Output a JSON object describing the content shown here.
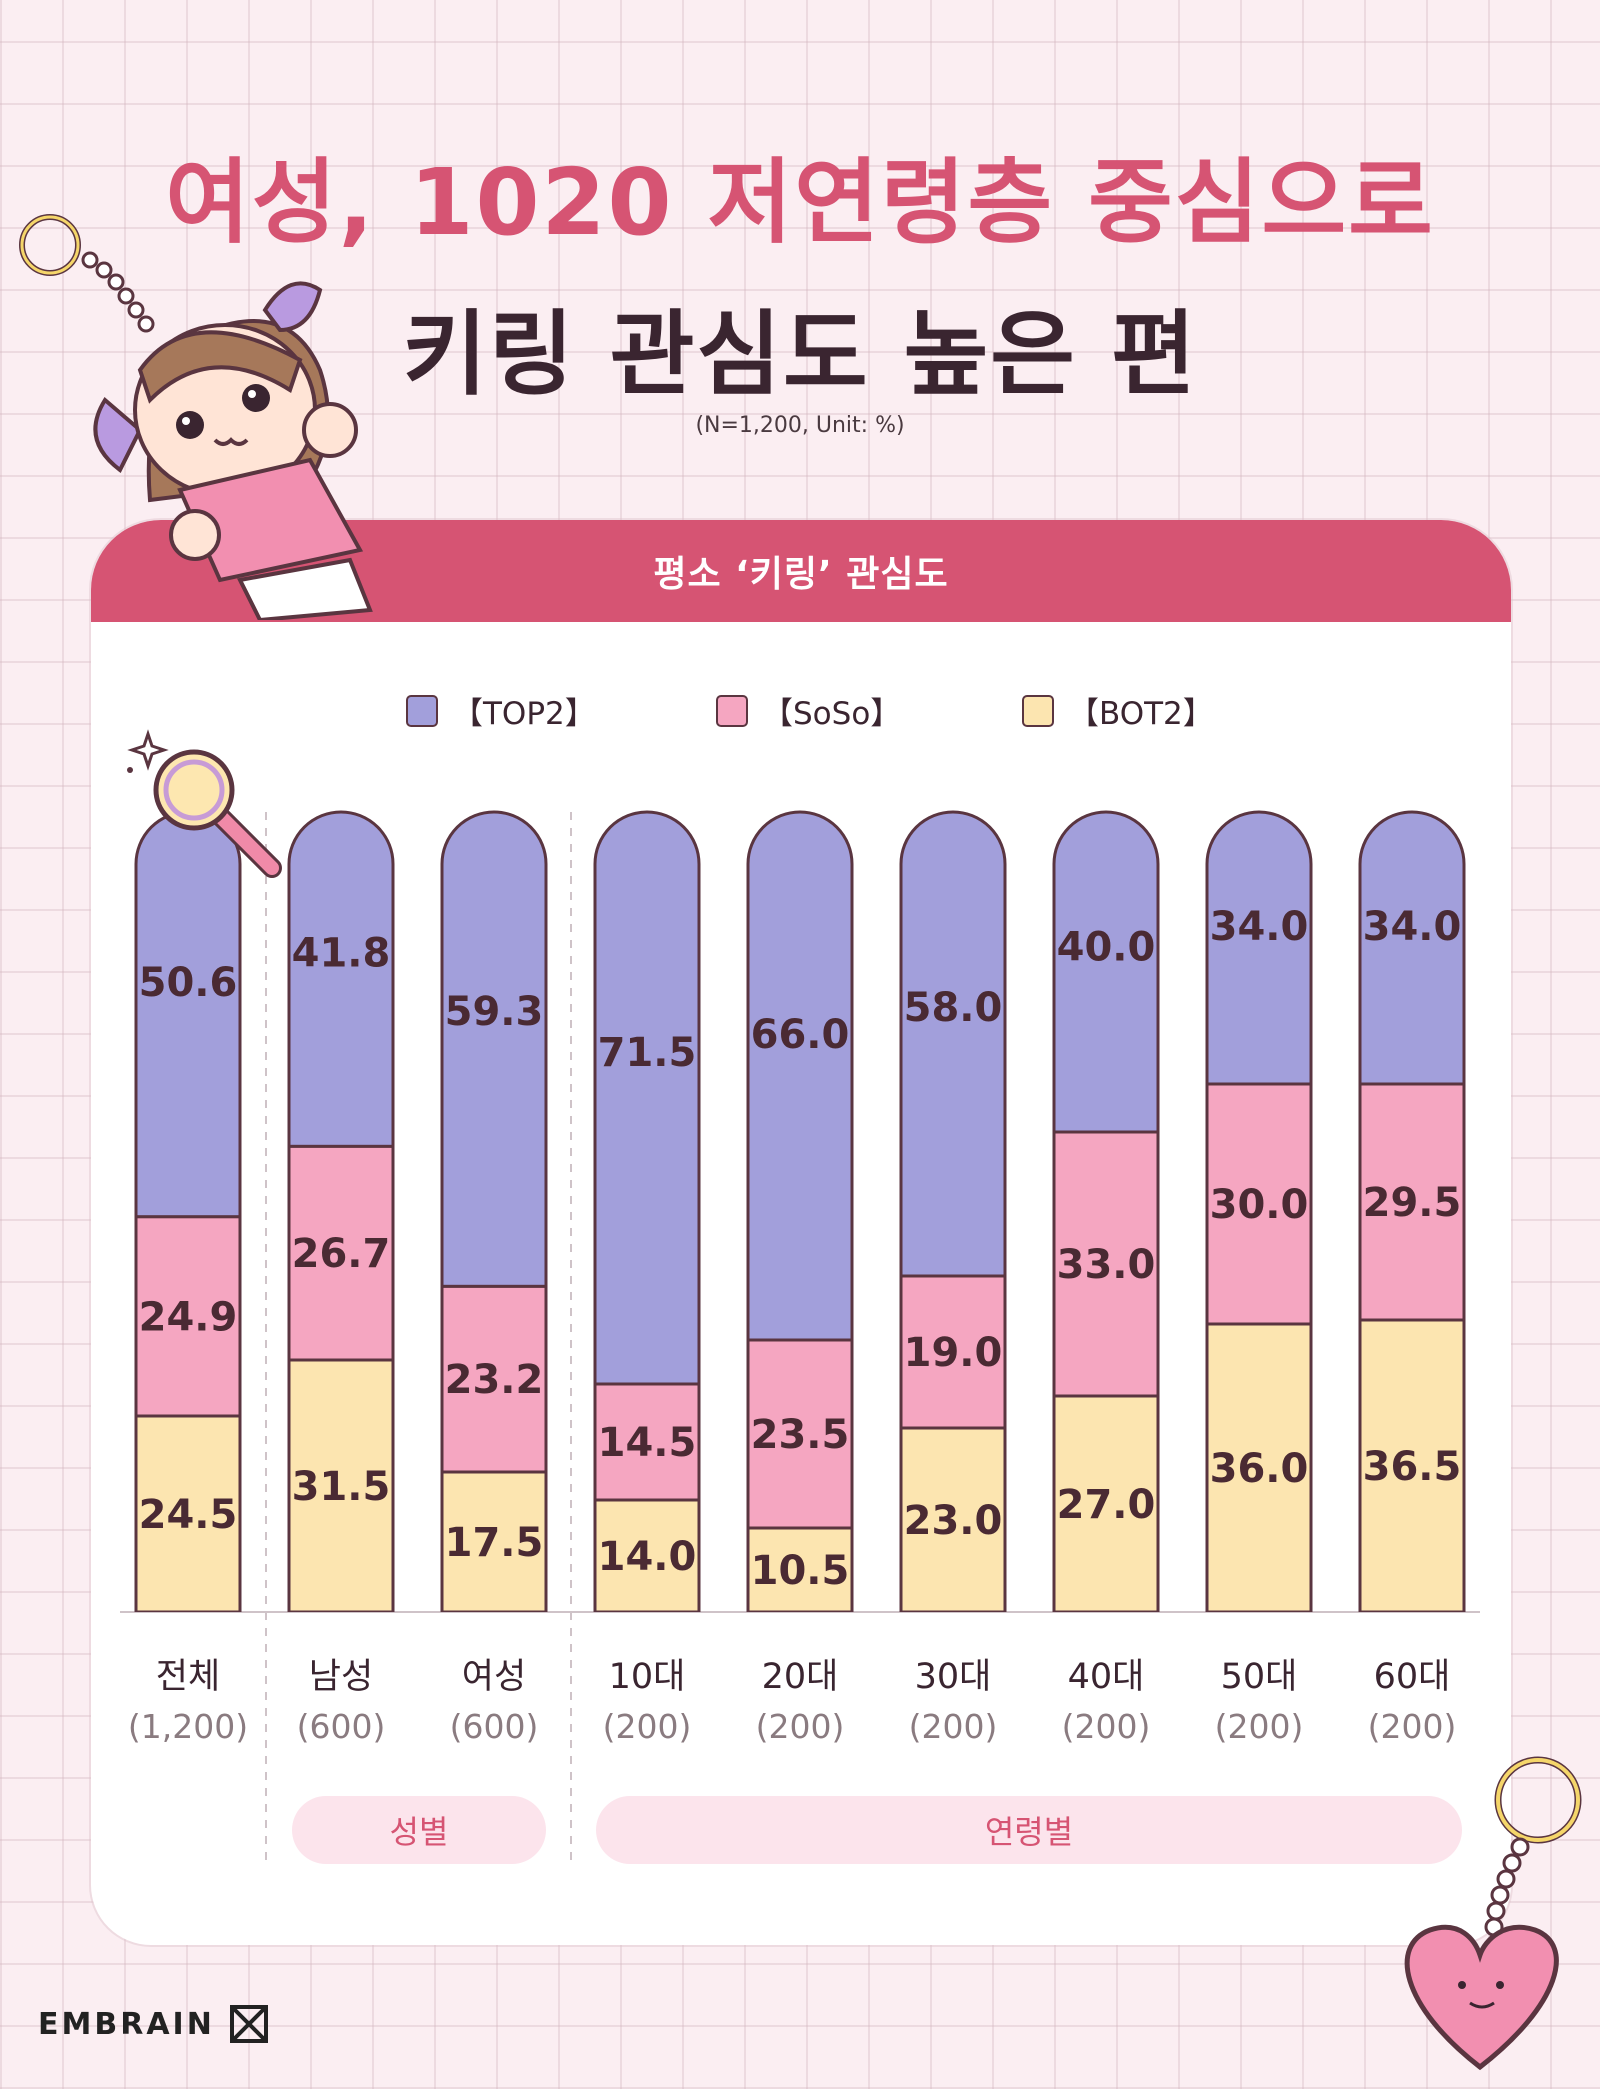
{
  "title": {
    "line1": "여성, 1020 저연령층 중심으로",
    "line2": "키링 관심도 높은 편"
  },
  "note": "(N=1,200, Unit: %)",
  "card_header": "평소 ‘키링’ 관심도",
  "legend": [
    {
      "label": "【TOP2】",
      "color": "#a29fdb"
    },
    {
      "label": "【SoSo】",
      "color": "#f5a6c1"
    },
    {
      "label": "【BOT2】",
      "color": "#fce5b0"
    }
  ],
  "groups": {
    "gender": "성별",
    "age": "연령별"
  },
  "brand": "EMBRAIN",
  "chart_data": {
    "type": "bar",
    "stacked": true,
    "categories": [
      "전체",
      "남성",
      "여성",
      "10대",
      "20대",
      "30대",
      "40대",
      "50대",
      "60대"
    ],
    "sample_sizes": [
      "(1,200)",
      "(600)",
      "(600)",
      "(200)",
      "(200)",
      "(200)",
      "(200)",
      "(200)",
      "(200)"
    ],
    "series": [
      {
        "name": "【TOP2】",
        "color": "#a29fdb",
        "values": [
          50.6,
          41.8,
          59.3,
          71.5,
          66.0,
          58.0,
          40.0,
          34.0,
          34.0
        ]
      },
      {
        "name": "【SoSo】",
        "color": "#f5a6c1",
        "values": [
          24.9,
          26.7,
          23.2,
          14.5,
          23.5,
          19.0,
          33.0,
          30.0,
          29.5
        ]
      },
      {
        "name": "【BOT2】",
        "color": "#fce5b0",
        "values": [
          24.5,
          31.5,
          17.5,
          14.0,
          10.5,
          23.0,
          27.0,
          36.0,
          36.5
        ]
      }
    ],
    "ylim": [
      0,
      100
    ]
  }
}
